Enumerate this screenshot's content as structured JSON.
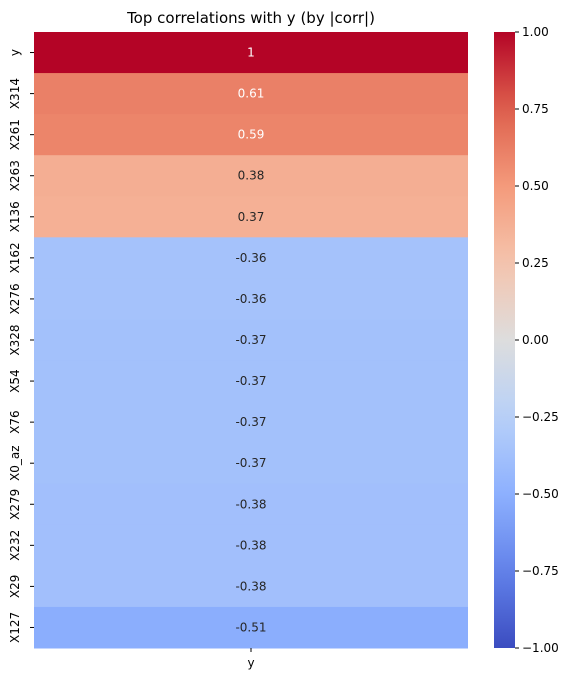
{
  "chart_data": {
    "type": "heatmap",
    "title": "Top correlations with y (by |corr|)",
    "x_categories": [
      "y"
    ],
    "y_categories": [
      "y",
      "X314",
      "X261",
      "X263",
      "X136",
      "X162",
      "X276",
      "X328",
      "X54",
      "X76",
      "X0_az",
      "X279",
      "X232",
      "X29",
      "X127"
    ],
    "values": [
      1,
      0.61,
      0.59,
      0.38,
      0.37,
      -0.36,
      -0.36,
      -0.37,
      -0.37,
      -0.37,
      -0.37,
      -0.38,
      -0.38,
      -0.38,
      -0.51
    ],
    "cell_labels": [
      "1",
      "0.61",
      "0.59",
      "0.38",
      "0.37",
      "-0.36",
      "-0.36",
      "-0.37",
      "-0.37",
      "-0.37",
      "-0.37",
      "-0.38",
      "-0.38",
      "-0.38",
      "-0.51"
    ],
    "colormap": "coolwarm",
    "vmin": -1,
    "vmax": 1,
    "colorbar_ticks": [
      1.0,
      0.75,
      0.5,
      0.25,
      0.0,
      -0.25,
      -0.5,
      -0.75,
      -1.0
    ],
    "colorbar_tick_labels": [
      "1.00",
      "0.75",
      "0.50",
      "0.25",
      "0.00",
      "−0.25",
      "−0.50",
      "−0.75",
      "−1.00"
    ],
    "grid": false,
    "legend": "colorbar-right"
  }
}
